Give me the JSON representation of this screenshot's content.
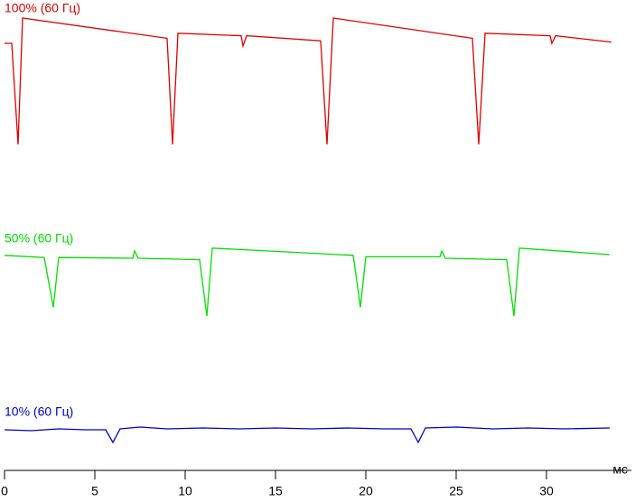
{
  "chart_data": {
    "type": "line",
    "x_label": "мс",
    "xlim": [
      0,
      34.7
    ],
    "xticks": [
      0,
      5,
      10,
      15,
      20,
      25,
      30
    ],
    "ylim": [
      0,
      1
    ],
    "series": [
      {
        "name": "100% (60 Гц)",
        "color": "#e00000",
        "x": [
          0,
          0.4,
          0.75,
          1.0,
          9.0,
          9.3,
          9.6,
          13.1,
          13.2,
          13.4,
          17.5,
          17.85,
          18.2,
          25.9,
          26.25,
          26.6,
          30.2,
          30.3,
          30.5,
          33.6
        ],
        "values": [
          0.8,
          0.8,
          0,
          1.0,
          0.84,
          0,
          0.88,
          0.86,
          0.78,
          0.86,
          0.82,
          0,
          1.0,
          0.84,
          0,
          0.88,
          0.86,
          0.8,
          0.86,
          0.81
        ]
      },
      {
        "name": "50% (60 Гц)",
        "color": "#00e000",
        "x": [
          0,
          2.2,
          2.7,
          3.0,
          7.1,
          7.2,
          7.4,
          10.8,
          11.2,
          11.5,
          19.3,
          19.7,
          20.0,
          24.1,
          24.2,
          24.4,
          27.8,
          28.2,
          28.5,
          33.5
        ],
        "values": [
          0.84,
          0.81,
          0.12,
          0.81,
          0.8,
          0.9,
          0.8,
          0.78,
          0,
          0.94,
          0.84,
          0.12,
          0.82,
          0.82,
          0.9,
          0.8,
          0.78,
          0,
          0.94,
          0.85
        ]
      },
      {
        "name": "10% (60 Гц)",
        "color": "#0000c0",
        "x": [
          0,
          1.5,
          3.0,
          4.5,
          5.6,
          6.0,
          6.4,
          7.5,
          9.0,
          11.0,
          13.0,
          15.0,
          17.0,
          19.0,
          21.0,
          22.5,
          22.9,
          23.3,
          25.0,
          27.0,
          29.0,
          31.0,
          33.5
        ],
        "values": [
          0.7,
          0.65,
          0.75,
          0.7,
          0.7,
          0,
          0.75,
          0.85,
          0.75,
          0.8,
          0.75,
          0.8,
          0.75,
          0.8,
          0.75,
          0.75,
          0,
          0.8,
          0.85,
          0.75,
          0.8,
          0.75,
          0.8
        ]
      }
    ]
  }
}
